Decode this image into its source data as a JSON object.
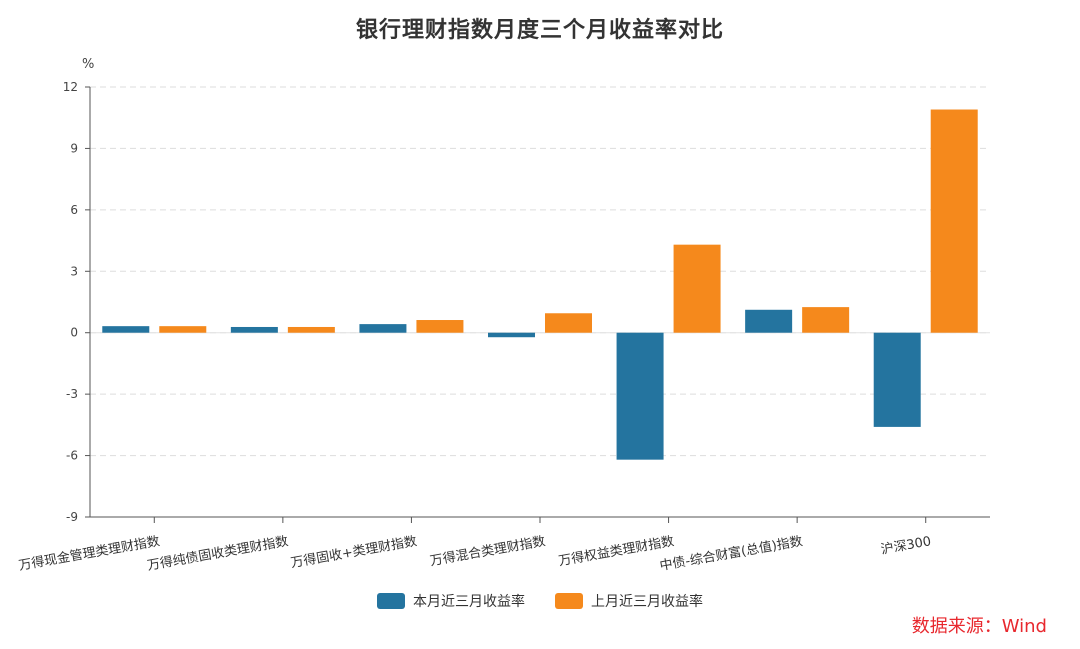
{
  "chart_data": {
    "type": "bar",
    "title": "银行理财指数月度三个月收益率对比",
    "ylabel": "%",
    "xlabel": "",
    "ylim": [
      -9,
      12
    ],
    "yticks": [
      12,
      9,
      6,
      3,
      0,
      -3,
      -6,
      -9
    ],
    "categories": [
      "万得现金管理类理财指数",
      "万得纯债固收类理财指数",
      "万得固收+类理财指数",
      "万得混合类理财指数",
      "万得权益类理财指数",
      "中债-综合财富(总值)指数",
      "沪深300"
    ],
    "series": [
      {
        "name": "本月近三月收益率",
        "color": "#24749f",
        "values": [
          0.32,
          0.28,
          0.42,
          -0.22,
          -6.2,
          1.12,
          -4.6
        ]
      },
      {
        "name": "上月近三月收益率",
        "color": "#f5891c",
        "values": [
          0.32,
          0.28,
          0.62,
          0.95,
          4.3,
          1.25,
          10.9
        ]
      }
    ],
    "grid": true,
    "legend_position": "bottom"
  },
  "source": "数据来源：Wind"
}
